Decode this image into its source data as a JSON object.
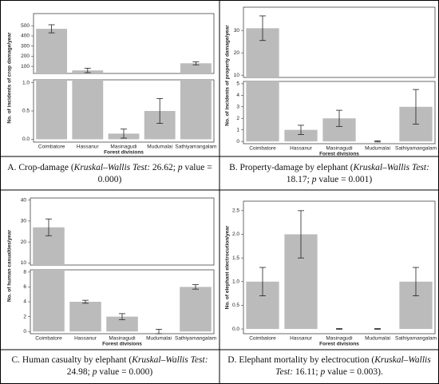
{
  "chart_data": [
    {
      "type": "bar",
      "categories": [
        "Coimbatore",
        "Hassanur",
        "Masinagudi",
        "Mudumalai",
        "Sathiyamangalam"
      ],
      "values": [
        470,
        60,
        0.1,
        0.5,
        130
      ],
      "errors": [
        40,
        22,
        0.08,
        0.22,
        15
      ],
      "color": "#bbbbbb",
      "x_label": "Forest divisions",
      "y_label": "No. of incidents of crop damage/year",
      "broken_axis": {
        "upper": {
          "ylim": [
            30,
            620
          ],
          "yticks": [
            100,
            200,
            300,
            400,
            500
          ]
        },
        "lower": {
          "ylim": [
            -0.05,
            1.05
          ],
          "yticks": [
            {
              "value": 0,
              "label": "0.0"
            },
            {
              "value": 0.5,
              "label": "0.5"
            },
            {
              "value": 1,
              "label": "1.0"
            }
          ]
        }
      },
      "caption": [
        {
          "text": "A. Crop-damage ("
        },
        {
          "text": "Kruskal–Wallis Test:",
          "italic": true
        },
        {
          "text": " 26.62; "
        },
        {
          "text": "p",
          "italic": true
        },
        {
          "text": " value = 0.000)"
        }
      ]
    },
    {
      "type": "bar",
      "categories": [
        "Coimbatore",
        "Hassanur",
        "Masinagudi",
        "Mudumalai",
        "Sathiyamangalam"
      ],
      "values": [
        31,
        1,
        2,
        0,
        3
      ],
      "errors": [
        5.5,
        0.4,
        0.7,
        0.05,
        1.5
      ],
      "color": "#bbbbbb",
      "x_label": "Forest divisions",
      "y_label": "No. of incidents of property damage/year",
      "broken_axis": {
        "upper": {
          "ylim": [
            9,
            40.4
          ],
          "yticks": [
            10,
            20,
            30
          ]
        },
        "lower": {
          "ylim": [
            -0.2,
            5.2
          ],
          "yticks": [
            0,
            1,
            2,
            3,
            4,
            5
          ]
        }
      },
      "caption": [
        {
          "text": "B. Property-damage by elephant ("
        },
        {
          "text": "Kruskal–Wallis Test:",
          "italic": true
        },
        {
          "text": " 18.17; "
        },
        {
          "text": "p",
          "italic": true
        },
        {
          "text": " value = 0.001)"
        }
      ]
    },
    {
      "type": "bar",
      "categories": [
        "Coimbatore",
        "Hassanur",
        "Masinagudi",
        "Mudumalai",
        "Sathiyamangalam"
      ],
      "values": [
        27,
        4,
        2,
        0,
        6
      ],
      "errors": [
        4,
        0.2,
        0.4,
        0.3,
        0.3
      ],
      "color": "#bbbbbb",
      "x_label": "Forest divisions",
      "y_label": "No. of human casualties/year",
      "broken_axis": {
        "upper": {
          "ylim": [
            9,
            41
          ],
          "yticks": [
            10,
            20,
            30,
            40
          ]
        },
        "lower": {
          "ylim": [
            -0.3,
            8.3
          ],
          "yticks": [
            0,
            2,
            4,
            6,
            8
          ]
        }
      },
      "caption": [
        {
          "text": "C. Human casualty by elephant ("
        },
        {
          "text": "Kruskal–Wallis Test:",
          "italic": true
        },
        {
          "text": " 24.98; "
        },
        {
          "text": "p",
          "italic": true
        },
        {
          "text": " value = 0.000)"
        }
      ]
    },
    {
      "type": "bar",
      "categories": [
        "Coimbatore",
        "Hassanur",
        "Masinagudi",
        "Mudumalai",
        "Sathiyamangalam"
      ],
      "values": [
        1,
        2,
        0,
        0,
        1
      ],
      "errors": [
        0.3,
        0.5,
        0.01,
        0.01,
        0.3
      ],
      "color": "#bbbbbb",
      "x_label": "Forest divisions",
      "y_label": "No. of elephant electrocution/year",
      "ylim": [
        -0.1,
        2.7
      ],
      "yticks": [
        {
          "value": 0,
          "label": "0.0"
        },
        {
          "value": 0.5,
          "label": "0.5"
        },
        {
          "value": 1,
          "label": "1.0"
        },
        {
          "value": 1.5,
          "label": "1.5"
        },
        {
          "value": 2,
          "label": "2.0"
        },
        {
          "value": 2.5,
          "label": "2.5"
        }
      ],
      "caption": [
        {
          "text": "D. Elephant mortality by electrocution ("
        },
        {
          "text": "Kruskal–Wallis Test:",
          "italic": true
        },
        {
          "text": " 16.11; "
        },
        {
          "text": "p",
          "italic": true
        },
        {
          "text": " value = 0.003)."
        }
      ]
    }
  ]
}
